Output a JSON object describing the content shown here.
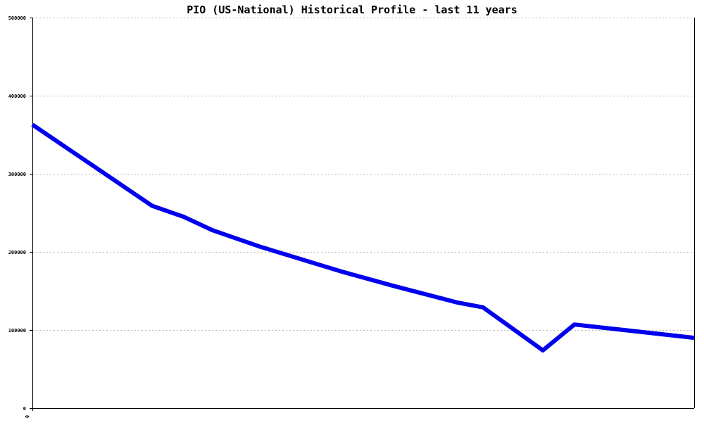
{
  "chart_data": {
    "type": "line",
    "title": "PIO (US-National) Historical Profile - last 11 years",
    "xlabel": "",
    "ylabel": "",
    "x_tick_labels": [
      "0"
    ],
    "y_ticks": [
      0,
      100000,
      200000,
      300000,
      400000,
      500000
    ],
    "y_tick_labels": [
      "0",
      "100000",
      "200000",
      "300000",
      "400000",
      "500000"
    ],
    "ylim": [
      0,
      500000
    ],
    "xlim": [
      0,
      21
    ],
    "grid": true,
    "series": [
      {
        "color": "#0000ee",
        "x": [
          0,
          3.8,
          4.8,
          5.7,
          7.2,
          9.8,
          11.5,
          13.5,
          14.3,
          16.2,
          17.2,
          21
        ],
        "y": [
          363000,
          259000,
          245000,
          228000,
          207000,
          175000,
          156000,
          135000,
          129000,
          74000,
          107000,
          90000
        ]
      }
    ]
  }
}
